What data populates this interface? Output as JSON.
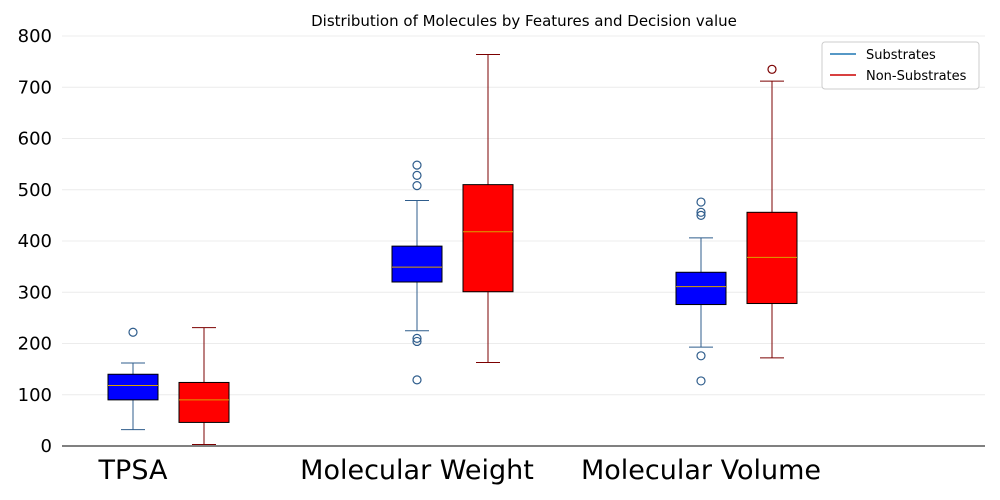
{
  "chart_data": {
    "type": "boxplot",
    "title": "Distribution of Molecules by Features and Decision value",
    "xlabel": "",
    "ylabel": "",
    "ylim": [
      0,
      800
    ],
    "yticks": [
      0,
      100,
      200,
      300,
      400,
      500,
      600,
      700,
      800
    ],
    "grid": "horizontal",
    "legend_position": "top-right",
    "categories": [
      "TPSA",
      "Molecular Weight",
      "Molecular Volume"
    ],
    "series": [
      {
        "name": "Substrates",
        "color": "#1f77b4",
        "fill": "#0000ff",
        "edge": "#000000",
        "boxes": [
          {
            "whisker_low": 32,
            "q1": 90,
            "median": 118,
            "q3": 140,
            "whisker_high": 162,
            "outliers": [
              222
            ]
          },
          {
            "whisker_low": 225,
            "q1": 320,
            "median": 349,
            "q3": 390,
            "whisker_high": 479,
            "outliers": [
              129,
              204,
              210,
              508,
              528,
              548
            ]
          },
          {
            "whisker_low": 193,
            "q1": 276,
            "median": 311,
            "q3": 339,
            "whisker_high": 406,
            "outliers": [
              127,
              176,
              450,
              456,
              476
            ]
          }
        ]
      },
      {
        "name": "Non-Substrates",
        "color": "#d62728",
        "fill": "#ff0000",
        "edge": "#000000",
        "boxes": [
          {
            "whisker_low": 3,
            "q1": 46,
            "median": 90,
            "q3": 124,
            "whisker_high": 231,
            "outliers": []
          },
          {
            "whisker_low": 163,
            "q1": 301,
            "median": 418,
            "q3": 510,
            "whisker_high": 764,
            "outliers": []
          },
          {
            "whisker_low": 172,
            "q1": 278,
            "median": 368,
            "q3": 456,
            "whisker_high": 712,
            "outliers": [
              735
            ]
          }
        ]
      }
    ]
  },
  "style": {
    "substrate_line": "#2f5d8c",
    "nonsubstrate_line": "#7b0000",
    "median_line": "#d9a000",
    "grid_color": "#ececec",
    "legend_substrate_line": "#1f77b4",
    "legend_nonsubstrate_line": "#cc0000"
  }
}
